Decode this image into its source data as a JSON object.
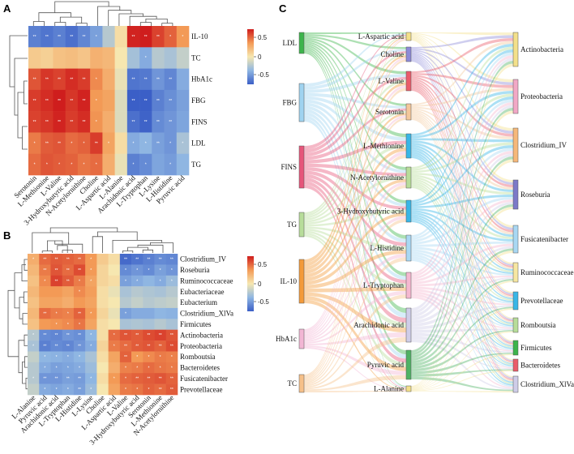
{
  "panels": {
    "a": "A",
    "b": "B",
    "c": "C"
  },
  "chart_data": [
    {
      "type": "heatmap",
      "panel": "A",
      "rows": [
        "IL-10",
        "TC",
        "HbA1c",
        "FBG",
        "FINS",
        "LDL",
        "TG"
      ],
      "columns": [
        "Serotonin",
        "L-Methionine",
        "L-Valine",
        "3-Hydroxybutyric acid",
        "N-Acetylornithine",
        "Choline",
        "L-Aspartic acid",
        "L-Alanine",
        "Arachidonic acid",
        "L-Tryptophan",
        "L-Lysine",
        "L-Histidine",
        "Pyruvic acid"
      ],
      "values": [
        [
          -0.65,
          -0.7,
          -0.65,
          -0.72,
          -0.62,
          -0.5,
          -0.25,
          0.05,
          0.78,
          0.8,
          0.68,
          0.58,
          0.4
        ],
        [
          0.15,
          0.12,
          0.2,
          0.22,
          0.18,
          0.28,
          0.25,
          0.0,
          -0.32,
          -0.45,
          -0.25,
          -0.3,
          -0.2
        ],
        [
          0.62,
          0.72,
          0.68,
          0.75,
          0.7,
          0.45,
          0.3,
          -0.05,
          -0.7,
          -0.68,
          -0.55,
          -0.62,
          -0.45
        ],
        [
          0.7,
          0.75,
          0.82,
          0.72,
          0.78,
          0.4,
          0.35,
          -0.1,
          -0.8,
          -0.85,
          -0.65,
          -0.58,
          -0.5
        ],
        [
          0.68,
          0.72,
          0.78,
          0.7,
          0.75,
          0.42,
          0.3,
          -0.1,
          -0.72,
          -0.78,
          -0.6,
          -0.55,
          -0.48
        ],
        [
          0.5,
          0.6,
          0.62,
          0.55,
          0.58,
          0.7,
          0.35,
          0.05,
          -0.45,
          -0.4,
          -0.5,
          -0.55,
          -0.3
        ],
        [
          0.55,
          0.62,
          0.6,
          0.58,
          0.52,
          0.55,
          0.3,
          -0.05,
          -0.65,
          -0.6,
          -0.48,
          -0.52,
          -0.4
        ]
      ],
      "stars": [
        [
          "**",
          "**",
          "**",
          "**",
          "**",
          "*",
          "",
          "",
          "**",
          "**",
          "**",
          "*",
          "*"
        ],
        [
          "",
          "",
          "",
          "",
          "",
          "",
          "",
          "",
          "",
          "*",
          "",
          "",
          ""
        ],
        [
          "**",
          "**",
          "**",
          "**",
          "**",
          "*",
          "",
          "",
          "**",
          "**",
          "**",
          "**",
          ""
        ],
        [
          "**",
          "**",
          "**",
          "**",
          "**",
          "*",
          "",
          "",
          "**",
          "**",
          "**",
          "**",
          ""
        ],
        [
          "**",
          "**",
          "**",
          "**",
          "**",
          "*",
          "",
          "",
          "**",
          "**",
          "**",
          "**",
          ""
        ],
        [
          "*",
          "**",
          "**",
          "*",
          "*",
          "**",
          "*",
          "",
          "*",
          "*",
          "**",
          "*",
          "*"
        ],
        [
          "*",
          "*",
          "*",
          "*",
          "*",
          "*",
          "",
          "",
          "*",
          "*",
          "",
          "*",
          ""
        ]
      ],
      "colorbar_ticks": [
        "0.5",
        "0",
        "-0.5"
      ]
    },
    {
      "type": "heatmap",
      "panel": "B",
      "rows": [
        "Clostridium_IV",
        "Roseburia",
        "Ruminococcaceae",
        "Eubacteriaceae",
        "Eubacterium",
        "Clostridium_XlVa",
        "Firmicutes",
        "Actinobacteria",
        "Proteobacteria",
        "Romboutsia",
        "Bacteroidetes",
        "Fusicatenibacter",
        "Prevotellaceae"
      ],
      "columns": [
        "L-Alanine",
        "Pyruvic acid",
        "Arachidonic acid",
        "L-Tryptophan",
        "L-Histidine",
        "L-Lysine",
        "Choline",
        "L-Aspartic acid",
        "L-Valine",
        "3-Hydroxybutyric acid",
        "Serotonin",
        "L-Methionine",
        "N-Acetylornithine"
      ],
      "values": [
        [
          0.3,
          0.55,
          0.6,
          0.58,
          0.55,
          0.4,
          0.15,
          0.05,
          -0.75,
          -0.7,
          -0.65,
          -0.6,
          -0.62
        ],
        [
          0.25,
          0.5,
          0.62,
          0.55,
          0.65,
          0.4,
          0.1,
          0.0,
          -0.6,
          -0.55,
          -0.6,
          -0.5,
          -0.55
        ],
        [
          0.2,
          0.45,
          0.68,
          0.6,
          0.5,
          0.35,
          0.1,
          0.05,
          -0.5,
          -0.45,
          -0.4,
          -0.45,
          -0.35
        ],
        [
          0.25,
          0.4,
          0.4,
          0.35,
          0.45,
          0.38,
          0.05,
          -0.05,
          -0.3,
          -0.25,
          -0.28,
          -0.3,
          -0.25
        ],
        [
          0.2,
          0.35,
          0.35,
          0.3,
          0.4,
          0.35,
          0.05,
          0.0,
          -0.25,
          -0.2,
          -0.25,
          -0.22,
          -0.2
        ],
        [
          0.25,
          0.55,
          0.5,
          0.48,
          0.58,
          0.4,
          0.1,
          -0.05,
          -0.5,
          -0.45,
          -0.45,
          -0.4,
          -0.42
        ],
        [
          0.2,
          0.4,
          0.42,
          0.45,
          0.52,
          0.35,
          0.05,
          0.0,
          -0.3,
          -0.28,
          -0.3,
          -0.25,
          -0.3
        ],
        [
          -0.25,
          -0.6,
          -0.62,
          -0.55,
          -0.58,
          -0.4,
          0.05,
          0.55,
          0.62,
          0.6,
          0.65,
          0.68,
          0.62
        ],
        [
          -0.3,
          -0.65,
          -0.6,
          -0.62,
          -0.55,
          -0.45,
          0.1,
          0.5,
          0.55,
          0.6,
          0.62,
          0.58,
          0.65
        ],
        [
          -0.2,
          -0.4,
          -0.42,
          -0.45,
          -0.4,
          -0.3,
          0.05,
          0.35,
          0.58,
          0.4,
          0.45,
          0.5,
          0.48
        ],
        [
          -0.25,
          -0.45,
          -0.5,
          -0.48,
          -0.45,
          -0.35,
          0.0,
          0.3,
          0.48,
          0.5,
          0.55,
          0.52,
          0.5
        ],
        [
          -0.25,
          -0.55,
          -0.55,
          -0.5,
          -0.52,
          -0.4,
          0.05,
          0.4,
          0.55,
          0.58,
          0.6,
          0.62,
          0.58
        ],
        [
          -0.2,
          -0.45,
          -0.48,
          -0.45,
          -0.5,
          -0.35,
          0.0,
          0.35,
          0.5,
          0.52,
          0.58,
          0.55,
          0.6
        ]
      ],
      "stars": [
        [
          "*",
          "**",
          "**",
          "**",
          "**",
          "*",
          "",
          "",
          "**",
          "**",
          "**",
          "**",
          "**"
        ],
        [
          "",
          "**",
          "**",
          "**",
          "**",
          "*",
          "",
          "",
          "*",
          "*",
          "*",
          "*",
          "*"
        ],
        [
          "",
          "*",
          "**",
          "**",
          "*",
          "*",
          "",
          "",
          "*",
          "*",
          "",
          "*",
          "*"
        ],
        [
          "",
          "",
          "",
          "",
          "*",
          "",
          "",
          "",
          "",
          "",
          "",
          "",
          ""
        ],
        [
          "",
          "",
          "",
          "",
          "",
          "",
          "",
          "",
          "",
          "",
          "",
          "",
          ""
        ],
        [
          "",
          "**",
          "*",
          "*",
          "**",
          "*",
          "",
          "",
          "*",
          "",
          "",
          "",
          ""
        ],
        [
          "",
          "",
          "*",
          "*",
          "*",
          "",
          "",
          "",
          "",
          "",
          "",
          "",
          ""
        ],
        [
          "*",
          "**",
          "**",
          "**",
          "**",
          "*",
          "",
          "*",
          "**",
          "**",
          "**",
          "**",
          "**"
        ],
        [
          "*",
          "**",
          "**",
          "**",
          "**",
          "*",
          "",
          "*",
          "**",
          "**",
          "**",
          "**",
          "**"
        ],
        [
          "",
          "*",
          "*",
          "*",
          "*",
          "",
          "",
          "",
          "**",
          "*",
          "*",
          "*",
          "*"
        ],
        [
          "",
          "*",
          "*",
          "*",
          "*",
          "",
          "",
          "",
          "*",
          "*",
          "*",
          "*",
          "*"
        ],
        [
          "*",
          "**",
          "**",
          "**",
          "**",
          "*",
          "",
          "*",
          "*",
          "**",
          "**",
          "**",
          "**"
        ],
        [
          "",
          "*",
          "*",
          "*",
          "**",
          "*",
          "",
          "",
          "*",
          "*",
          "*",
          "**",
          "**"
        ]
      ],
      "colorbar_ticks": [
        "0.5",
        "0",
        "-0.5"
      ]
    },
    {
      "type": "sankey",
      "panel": "C",
      "left_nodes": [
        {
          "name": "LDL",
          "color": "#3cb44b"
        },
        {
          "name": "FBG",
          "color": "#9fd3f0"
        },
        {
          "name": "FINS",
          "color": "#e6557a"
        },
        {
          "name": "TG",
          "color": "#b7dd9a"
        },
        {
          "name": "IL-10",
          "color": "#f39a3a"
        },
        {
          "name": "HbA1c",
          "color": "#f2b6d4"
        },
        {
          "name": "TC",
          "color": "#f6c089"
        }
      ],
      "middle_nodes": [
        {
          "name": "L-Aspartic acid",
          "color": "#f3e08a"
        },
        {
          "name": "Choline",
          "color": "#8d8ad8"
        },
        {
          "name": "L-Valine",
          "color": "#ea5b6a"
        },
        {
          "name": "Serotonin",
          "color": "#f4c79b"
        },
        {
          "name": "L-Methionine",
          "color": "#38b6e6"
        },
        {
          "name": "N-Acetylornithine",
          "color": "#b8dd99"
        },
        {
          "name": "3-Hydroxybutyric acid",
          "color": "#38b6e6"
        },
        {
          "name": "L-Histidine",
          "color": "#a9d8f3"
        },
        {
          "name": "L-Tryptophan",
          "color": "#f5b8d0"
        },
        {
          "name": "Arachidonic acid",
          "color": "#cfcde8"
        },
        {
          "name": "Pyruvic acid",
          "color": "#4fb264"
        },
        {
          "name": "L-Alanine",
          "color": "#f3e08a"
        }
      ],
      "right_nodes": [
        {
          "name": "Actinobacteria",
          "color": "#f3e08a"
        },
        {
          "name": "Proteobacteria",
          "color": "#f2a8c6"
        },
        {
          "name": "Clostridium_IV",
          "color": "#f6b87a"
        },
        {
          "name": "Roseburia",
          "color": "#7c79c8"
        },
        {
          "name": "Fusicatenibacter",
          "color": "#a9d8f3"
        },
        {
          "name": "Ruminococcaceae",
          "color": "#f7e7a1"
        },
        {
          "name": "Prevotellaceae",
          "color": "#38b6e6"
        },
        {
          "name": "Romboutsia",
          "color": "#b8dd99"
        },
        {
          "name": "Firmicutes",
          "color": "#3cb44b"
        },
        {
          "name": "Bacteroidetes",
          "color": "#ea5b6a"
        },
        {
          "name": "Clostridium_XlVa",
          "color": "#cfcde8"
        }
      ]
    }
  ]
}
